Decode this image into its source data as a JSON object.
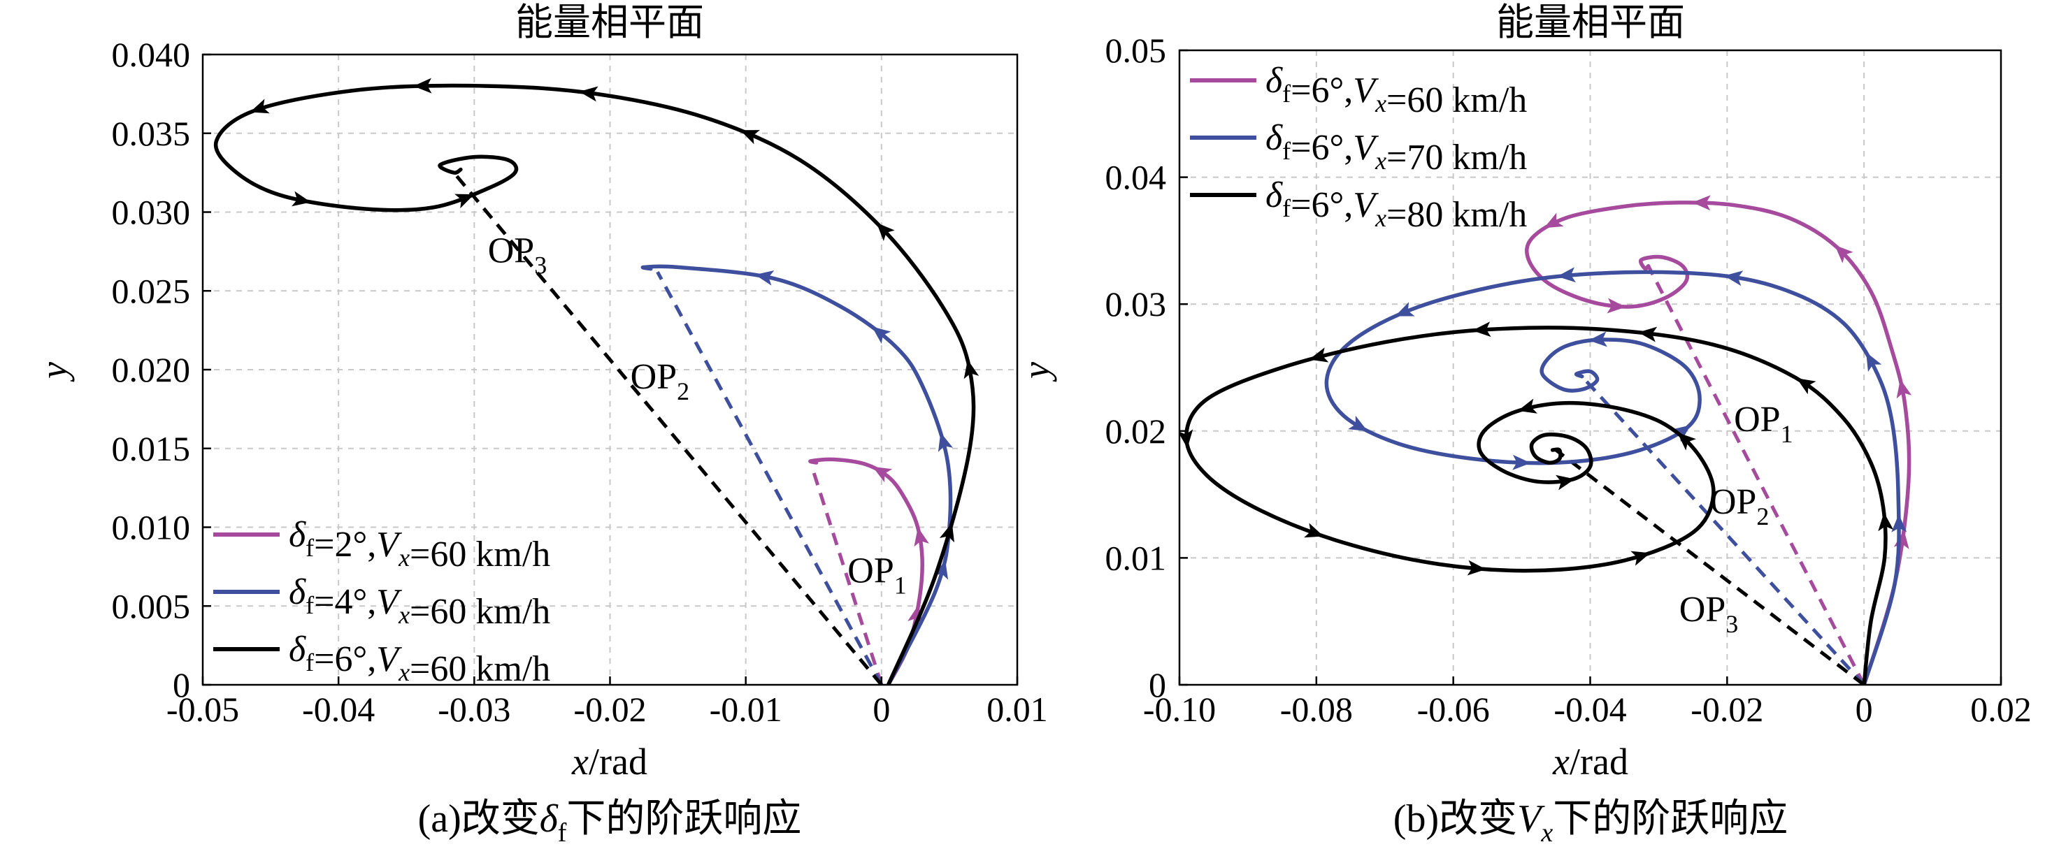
{
  "chart_data": [
    {
      "type": "line",
      "title": "能量相平面",
      "xlabel": "x/rad",
      "ylabel": "y",
      "xlim": [
        -0.05,
        0.01
      ],
      "ylim": [
        0,
        0.04
      ],
      "xticks": [
        "-0.05",
        "-0.04",
        "-0.03",
        "-0.02",
        "-0.01",
        "0",
        "0.01"
      ],
      "yticks": [
        "0",
        "0.005",
        "0.010",
        "0.015",
        "0.020",
        "0.025",
        "0.030",
        "0.035",
        "0.040"
      ],
      "grid": true,
      "legend_position": "bottom-left",
      "caption": "(a)改变δf下的阶跃响应",
      "annotations": [
        {
          "text": "OP1",
          "x": -0.0025,
          "y": 0.0065
        },
        {
          "text": "OP2",
          "x": -0.0185,
          "y": 0.0188
        },
        {
          "text": "OP3",
          "x": -0.029,
          "y": 0.0268
        }
      ],
      "series": [
        {
          "name": "δf=2°,Vx=60 km/h",
          "color": "#a54a9c",
          "x": [
            0.0005,
            0.002,
            0.0028,
            0.003,
            0.0026,
            0.0016,
            0.0005,
            -0.0012,
            -0.0035,
            -0.0052,
            -0.0048
          ],
          "y": [
            0.0,
            0.0025,
            0.0055,
            0.008,
            0.0102,
            0.012,
            0.0132,
            0.014,
            0.0143,
            0.0142,
            0.0141
          ],
          "eq_x": -0.005,
          "eq_y": 0.0135
        },
        {
          "name": "δf=4°,Vx=60 km/h",
          "color": "#3e4f9e",
          "x": [
            0.0005,
            0.004,
            0.005,
            0.0048,
            0.003,
            0.001,
            -0.003,
            -0.008,
            -0.015,
            -0.0175,
            -0.017
          ],
          "y": [
            0.0,
            0.006,
            0.01,
            0.0145,
            0.019,
            0.0215,
            0.024,
            0.0258,
            0.0265,
            0.0265,
            0.0264
          ],
          "eq_x": -0.0165,
          "eq_y": 0.0262
        },
        {
          "name": "δf=6°,Vx=60 km/h",
          "color": "#000000",
          "x": [
            0.0005,
            0.004,
            0.0065,
            0.0065,
            0.0045,
            0.0,
            -0.006,
            -0.013,
            -0.021,
            -0.029,
            -0.038,
            -0.046,
            -0.049,
            -0.0475,
            -0.044,
            -0.038,
            -0.033,
            -0.029,
            -0.027,
            -0.0275,
            -0.03,
            -0.0325,
            -0.0315,
            -0.031
          ],
          "y": [
            0.0,
            0.007,
            0.015,
            0.02,
            0.024,
            0.029,
            0.0333,
            0.036,
            0.0375,
            0.038,
            0.0378,
            0.0365,
            0.0345,
            0.0325,
            0.031,
            0.0302,
            0.0303,
            0.0315,
            0.0325,
            0.0333,
            0.0335,
            0.033,
            0.0325,
            0.0327
          ],
          "eq_x": -0.0315,
          "eq_y": 0.0325
        }
      ]
    },
    {
      "type": "line",
      "title": "能量相平面",
      "xlabel": "x/rad",
      "ylabel": "y",
      "xlim": [
        -0.1,
        0.02
      ],
      "ylim": [
        0,
        0.05
      ],
      "xticks": [
        "-0.10",
        "-0.08",
        "-0.06",
        "-0.04",
        "-0.02",
        "0",
        "0.02"
      ],
      "yticks": [
        "0",
        "0.01",
        "0.02",
        "0.03",
        "0.04",
        "0.05"
      ],
      "grid": true,
      "legend_position": "top-left",
      "caption": "(b)改变Vx下的阶跃响应",
      "annotations": [
        {
          "text": "OP1",
          "x": -0.019,
          "y": 0.02
        },
        {
          "text": "OP2",
          "x": -0.0225,
          "y": 0.0135
        },
        {
          "text": "OP3",
          "x": -0.027,
          "y": 0.005
        }
      ],
      "series": [
        {
          "name": "δf=6°,Vx=60 km/h",
          "color": "#a54a9c",
          "x": [
            0.0,
            0.0045,
            0.0065,
            0.006,
            0.004,
            0.001,
            -0.004,
            -0.011,
            -0.019,
            -0.027,
            -0.035,
            -0.0435,
            -0.0485,
            -0.049,
            -0.046,
            -0.04,
            -0.034,
            -0.029,
            -0.026,
            -0.0265,
            -0.0295,
            -0.0325,
            -0.032,
            -0.0315
          ],
          "y": [
            0.0,
            0.008,
            0.016,
            0.022,
            0.0265,
            0.031,
            0.0345,
            0.0368,
            0.0378,
            0.038,
            0.0377,
            0.0368,
            0.0352,
            0.0335,
            0.0316,
            0.0302,
            0.0298,
            0.0305,
            0.0318,
            0.033,
            0.0337,
            0.0335,
            0.0328,
            0.033
          ],
          "eq_x": -0.0315,
          "eq_y": 0.033
        },
        {
          "name": "δf=6°,Vx=70 km/h",
          "color": "#3e4f9e",
          "x": [
            0.0,
            0.0045,
            0.005,
            0.004,
            0.0015,
            -0.003,
            -0.01,
            -0.02,
            -0.035,
            -0.05,
            -0.065,
            -0.075,
            -0.0785,
            -0.076,
            -0.068,
            -0.057,
            -0.045,
            -0.034,
            -0.026,
            -0.024,
            -0.026,
            -0.032,
            -0.038,
            -0.043,
            -0.046,
            -0.047,
            -0.044,
            -0.041,
            -0.039,
            -0.04,
            -0.042,
            -0.0412
          ],
          "y": [
            0.0,
            0.008,
            0.015,
            0.021,
            0.025,
            0.0285,
            0.0308,
            0.0322,
            0.0325,
            0.0318,
            0.0298,
            0.027,
            0.024,
            0.0212,
            0.019,
            0.0178,
            0.0175,
            0.0183,
            0.0202,
            0.0225,
            0.025,
            0.0268,
            0.0272,
            0.0268,
            0.0258,
            0.0245,
            0.0233,
            0.0233,
            0.024,
            0.0247,
            0.0245,
            0.0243
          ],
          "eq_x": -0.0412,
          "eq_y": 0.0243
        },
        {
          "name": "δf=6°,Vx=80 km/h",
          "color": "#000000",
          "x": [
            0.0,
            0.001,
            0.003,
            0.0028,
            0.001,
            -0.003,
            -0.01,
            -0.022,
            -0.038,
            -0.055,
            -0.07,
            -0.085,
            -0.096,
            -0.099,
            -0.096,
            -0.088,
            -0.076,
            -0.062,
            -0.048,
            -0.035,
            -0.025,
            -0.022,
            -0.024,
            -0.029,
            -0.036,
            -0.044,
            -0.051,
            -0.0555,
            -0.056,
            -0.0525,
            -0.0475,
            -0.0425,
            -0.04,
            -0.0405,
            -0.043,
            -0.0465,
            -0.0485,
            -0.048,
            -0.046,
            -0.0445,
            -0.0445,
            -0.0455
          ],
          "y": [
            0.0,
            0.005,
            0.01,
            0.014,
            0.0175,
            0.021,
            0.0242,
            0.0268,
            0.028,
            0.028,
            0.027,
            0.025,
            0.0225,
            0.0195,
            0.0165,
            0.0137,
            0.0112,
            0.0095,
            0.009,
            0.0098,
            0.012,
            0.015,
            0.018,
            0.0205,
            0.0218,
            0.0222,
            0.0215,
            0.02,
            0.0183,
            0.0168,
            0.016,
            0.0162,
            0.0172,
            0.0186,
            0.0195,
            0.0197,
            0.019,
            0.018,
            0.0175,
            0.0178,
            0.0185,
            0.0185
          ],
          "eq_x": -0.045,
          "eq_y": 0.0185
        }
      ]
    }
  ]
}
